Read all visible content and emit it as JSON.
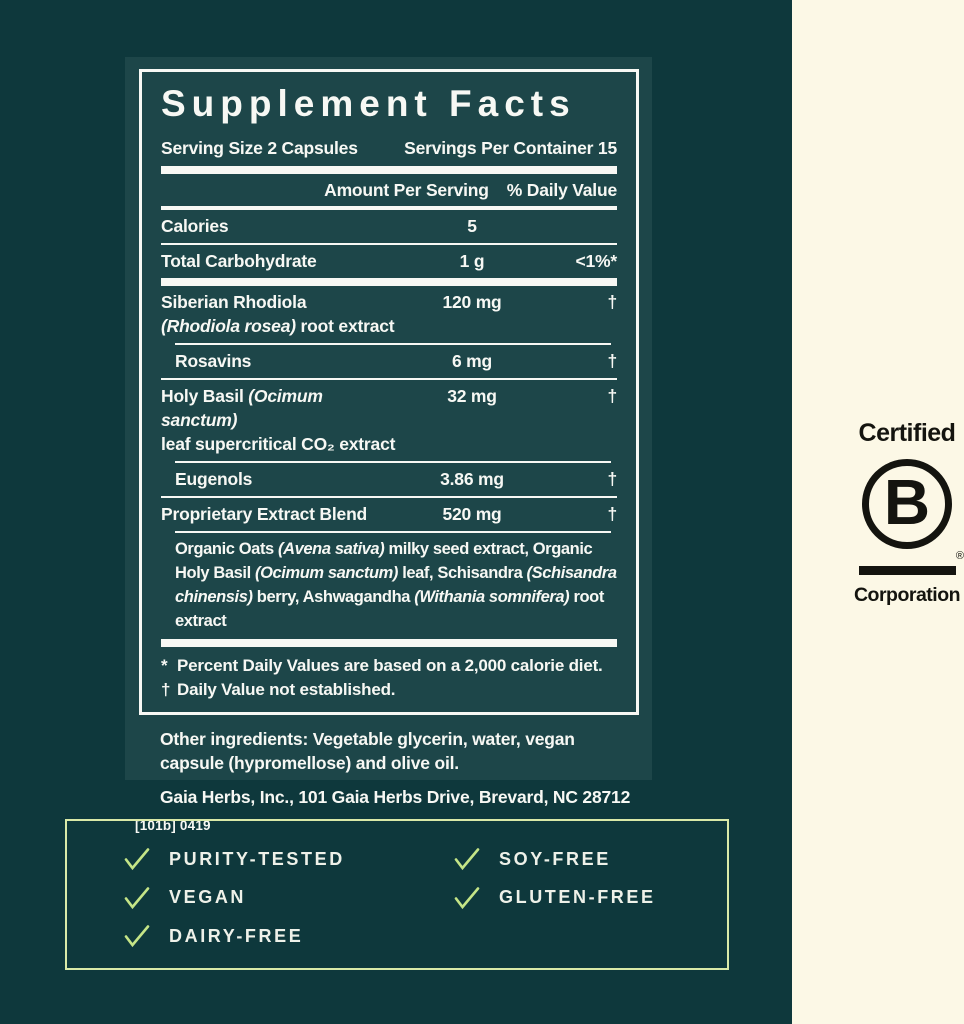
{
  "colors": {
    "background_teal": "#0e383c",
    "panel_teal": "#1d4649",
    "cream": "#fcf8e6",
    "label_text": "#f7f8f4",
    "logo_black": "#14140f",
    "box_border_green": "#d9e9a8",
    "check_green": "#c5e587"
  },
  "supplement_facts": {
    "title": "Supplement Facts",
    "serving_size": "Serving Size 2 Capsules",
    "servings_per_container": "Servings Per Container 15",
    "col_amount": "Amount Per Serving",
    "col_dv": "% Daily Value",
    "rows": [
      {
        "kind": "bar8"
      },
      {
        "kind": "header"
      },
      {
        "kind": "bar4"
      },
      {
        "kind": "item",
        "lines": [
          [
            [
              "Calories",
              0
            ]
          ]
        ],
        "amount": "5",
        "dv": "",
        "indent": false
      },
      {
        "kind": "sep"
      },
      {
        "kind": "item",
        "lines": [
          [
            [
              "Total Carbohydrate",
              0
            ]
          ]
        ],
        "amount": "1 g",
        "dv": "<1%*",
        "indent": false
      },
      {
        "kind": "bar8"
      },
      {
        "kind": "item",
        "lines": [
          [
            [
              "Siberian Rhodiola",
              0
            ]
          ],
          [
            [
              "(Rhodiola rosea)",
              1
            ],
            [
              " root extract",
              0
            ]
          ]
        ],
        "amount": "120 mg",
        "dv": "†",
        "indent": false
      },
      {
        "kind": "sep",
        "indent": true
      },
      {
        "kind": "item",
        "lines": [
          [
            [
              "Rosavins",
              0
            ]
          ]
        ],
        "amount": "6 mg",
        "dv": "†",
        "indent": true
      },
      {
        "kind": "sep"
      },
      {
        "kind": "item",
        "lines": [
          [
            [
              "Holy Basil ",
              0
            ],
            [
              "(Ocimum sanctum)",
              1
            ]
          ],
          [
            [
              "leaf supercritical CO₂ extract",
              0
            ]
          ]
        ],
        "amount": "32 mg",
        "dv": "†",
        "indent": false
      },
      {
        "kind": "sep",
        "indent": true
      },
      {
        "kind": "item",
        "lines": [
          [
            [
              "Eugenols",
              0
            ]
          ]
        ],
        "amount": "3.86 mg",
        "dv": "†",
        "indent": true
      },
      {
        "kind": "sep"
      },
      {
        "kind": "item",
        "lines": [
          [
            [
              "Proprietary Extract Blend",
              0
            ]
          ]
        ],
        "amount": "520 mg",
        "dv": "†",
        "indent": false
      },
      {
        "kind": "sep",
        "indent": true
      },
      {
        "kind": "desc",
        "segments": [
          [
            "Organic Oats ",
            0
          ],
          [
            "(Avena sativa)",
            1
          ],
          [
            " milky seed extract, Organic Holy Basil ",
            0
          ],
          [
            "(Ocimum sanctum)",
            1
          ],
          [
            " leaf, Schisandra ",
            0
          ],
          [
            "(Schisandra chinensis)",
            1
          ],
          [
            " berry, Ashwagandha ",
            0
          ],
          [
            "(Withania somnifera)",
            1
          ],
          [
            " root extract",
            0
          ]
        ]
      },
      {
        "kind": "bar8"
      }
    ],
    "footnotes": [
      {
        "symbol": "*",
        "text": "Percent Daily Values are based on a 2,000 calorie diet."
      },
      {
        "symbol": "†",
        "text": "Daily Value not established."
      }
    ]
  },
  "other_ingredients": "Other ingredients: Vegetable glycerin, water, vegan capsule (hypromellose) and olive oil.",
  "manufacturer": "Gaia Herbs, Inc., 101 Gaia Herbs Drive, Brevard, NC 28712",
  "lot_code": "[101b] 0419",
  "bcorp": {
    "top_text": "Certified",
    "letter": "B",
    "registered_mark": "®",
    "bottom_text": "Corporation"
  },
  "features": {
    "column1": [
      "PURITY-TESTED",
      "VEGAN",
      "DAIRY-FREE"
    ],
    "column2": [
      "SOY-FREE",
      "GLUTEN-FREE"
    ]
  }
}
